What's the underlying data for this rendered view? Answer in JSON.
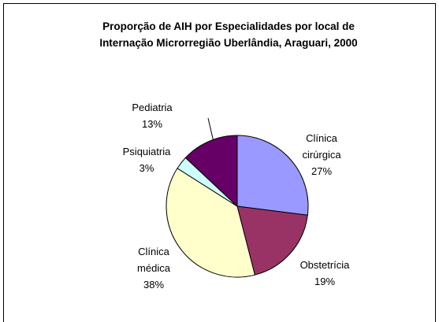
{
  "chart_data": {
    "type": "pie",
    "title": [
      "Proporção de AIH por Especialidades por local de",
      "Internação Microrregião Uberlândia, Araguari, 2000"
    ],
    "categories": [
      "Clínica cirúrgica",
      "Obstetrícia",
      "Clínica médica",
      "Psiquiatria",
      "Pediatria"
    ],
    "values": [
      27,
      19,
      38,
      3,
      13
    ],
    "value_labels": [
      "27%",
      "19%",
      "38%",
      "3%",
      "13%"
    ],
    "colors": [
      "#9999ff",
      "#993366",
      "#ffffcc",
      "#ccffff",
      "#660066"
    ]
  }
}
